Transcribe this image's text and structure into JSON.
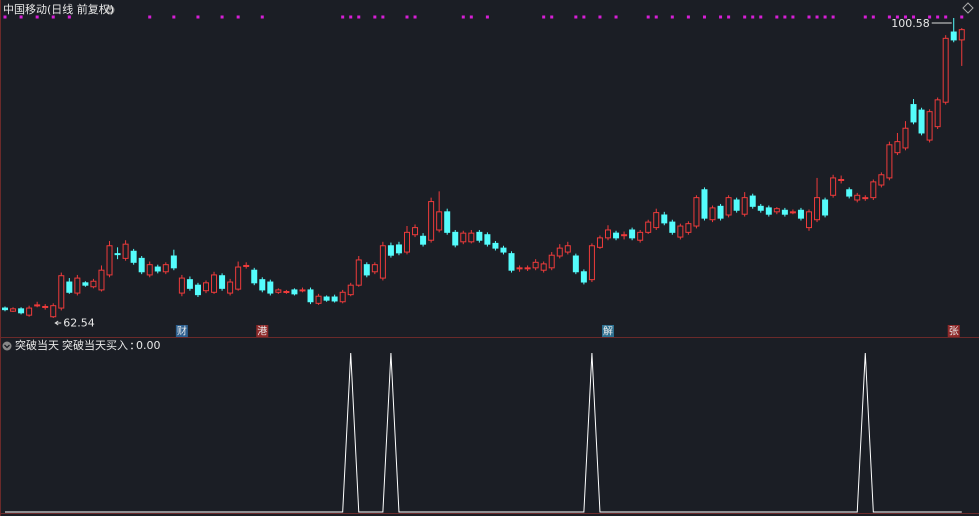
{
  "chart_data": [
    {
      "type": "candlestick",
      "title": "中国移动(日线 前复权)",
      "up_color": "#ee3b3b",
      "down_color": "#54fcfc",
      "signal_color": "#d61fd6",
      "ylim": [
        60.13,
        102.86
      ],
      "candles": [
        [
          63.8,
          64.0,
          63.4,
          63.6
        ],
        [
          63.4,
          63.9,
          63.3,
          63.7
        ],
        [
          63.7,
          63.9,
          63.0,
          63.2
        ],
        [
          62.9,
          64.1,
          62.7,
          63.8
        ],
        [
          64.2,
          64.6,
          63.9,
          64.2
        ],
        [
          63.9,
          64.3,
          63.6,
          64.0
        ],
        [
          62.7,
          64.4,
          62.54,
          64.1
        ],
        [
          63.8,
          68.3,
          63.5,
          67.9
        ],
        [
          67.1,
          67.6,
          65.6,
          65.8
        ],
        [
          65.7,
          68.0,
          65.4,
          67.6
        ],
        [
          67.0,
          67.2,
          66.5,
          66.7
        ],
        [
          66.5,
          67.5,
          66.3,
          67.2
        ],
        [
          66.1,
          69.2,
          65.9,
          68.6
        ],
        [
          68.0,
          72.3,
          67.7,
          71.7
        ],
        [
          70.7,
          71.5,
          70.0,
          70.6
        ],
        [
          70.1,
          72.4,
          69.8,
          71.9
        ],
        [
          71.0,
          71.3,
          69.3,
          69.6
        ],
        [
          70.1,
          70.4,
          68.1,
          68.4
        ],
        [
          68.0,
          69.7,
          67.7,
          69.3
        ],
        [
          69.0,
          69.3,
          68.2,
          68.5
        ],
        [
          68.4,
          69.6,
          68.1,
          69.3
        ],
        [
          70.4,
          71.2,
          68.6,
          68.9
        ],
        [
          65.7,
          68.0,
          65.3,
          67.6
        ],
        [
          67.4,
          67.8,
          66.0,
          66.3
        ],
        [
          66.7,
          67.0,
          65.2,
          65.5
        ],
        [
          66.0,
          67.3,
          65.7,
          67.0
        ],
        [
          65.8,
          68.4,
          65.6,
          68.0
        ],
        [
          67.9,
          68.2,
          66.0,
          66.3
        ],
        [
          65.7,
          67.5,
          65.4,
          67.1
        ],
        [
          66.2,
          69.7,
          66.0,
          69.0
        ],
        [
          69.1,
          69.6,
          68.8,
          69.2
        ],
        [
          68.6,
          68.9,
          66.7,
          67.0
        ],
        [
          67.4,
          67.7,
          65.8,
          66.1
        ],
        [
          67.1,
          67.4,
          65.4,
          65.7
        ],
        [
          65.8,
          66.3,
          65.6,
          66.1
        ],
        [
          65.8,
          66.1,
          65.6,
          65.9
        ],
        [
          66.1,
          66.3,
          65.4,
          65.6
        ],
        [
          66.0,
          66.4,
          65.8,
          66.1
        ],
        [
          66.1,
          66.4,
          64.3,
          64.6
        ],
        [
          64.4,
          65.6,
          64.2,
          65.3
        ],
        [
          65.2,
          65.4,
          64.6,
          64.8
        ],
        [
          65.2,
          65.5,
          64.5,
          64.7
        ],
        [
          64.6,
          66.1,
          64.4,
          65.8
        ],
        [
          65.5,
          67.0,
          65.3,
          66.7
        ],
        [
          66.7,
          70.4,
          66.5,
          69.9
        ],
        [
          69.3,
          69.6,
          67.7,
          68.0
        ],
        [
          68.4,
          69.6,
          68.1,
          69.3
        ],
        [
          67.6,
          72.2,
          67.3,
          71.7
        ],
        [
          71.7,
          72.1,
          70.2,
          70.5
        ],
        [
          71.8,
          72.2,
          70.5,
          70.8
        ],
        [
          70.9,
          74.2,
          70.6,
          73.4
        ],
        [
          73.1,
          74.4,
          72.8,
          74.0
        ],
        [
          72.9,
          73.3,
          71.6,
          71.9
        ],
        [
          72.4,
          77.8,
          72.1,
          77.3
        ],
        [
          73.7,
          78.6,
          73.4,
          76.0
        ],
        [
          76.0,
          76.4,
          73.1,
          73.4
        ],
        [
          73.4,
          73.7,
          71.5,
          71.8
        ],
        [
          72.2,
          73.6,
          71.9,
          73.3
        ],
        [
          72.2,
          73.7,
          72.0,
          73.3
        ],
        [
          73.4,
          73.7,
          72.1,
          72.4
        ],
        [
          73.1,
          73.4,
          71.6,
          71.9
        ],
        [
          72.0,
          72.3,
          71.1,
          71.4
        ],
        [
          71.4,
          71.7,
          70.6,
          70.9
        ],
        [
          70.7,
          71.0,
          68.3,
          68.6
        ],
        [
          68.9,
          69.2,
          68.4,
          68.9
        ],
        [
          68.8,
          69.2,
          68.5,
          68.9
        ],
        [
          68.9,
          70.0,
          68.6,
          69.6
        ],
        [
          68.6,
          69.7,
          68.3,
          69.4
        ],
        [
          68.9,
          70.9,
          68.6,
          70.5
        ],
        [
          70.4,
          71.9,
          70.1,
          71.4
        ],
        [
          70.9,
          72.2,
          70.6,
          71.7
        ],
        [
          70.4,
          70.7,
          68.1,
          68.4
        ],
        [
          68.4,
          68.7,
          66.8,
          67.1
        ],
        [
          67.4,
          72.0,
          67.1,
          71.7
        ],
        [
          71.5,
          73.0,
          71.3,
          72.7
        ],
        [
          72.7,
          74.3,
          72.4,
          73.7
        ],
        [
          73.3,
          73.6,
          72.4,
          72.7
        ],
        [
          73.0,
          73.5,
          72.5,
          73.1
        ],
        [
          73.7,
          74.0,
          72.4,
          72.7
        ],
        [
          72.4,
          73.7,
          72.1,
          73.4
        ],
        [
          73.4,
          75.0,
          73.2,
          74.7
        ],
        [
          74.0,
          76.4,
          73.7,
          75.9
        ],
        [
          75.6,
          76.0,
          74.3,
          74.6
        ],
        [
          74.7,
          75.0,
          73.1,
          73.4
        ],
        [
          72.8,
          74.5,
          72.5,
          74.2
        ],
        [
          73.4,
          74.8,
          73.1,
          74.5
        ],
        [
          74.2,
          78.1,
          73.9,
          77.8
        ],
        [
          78.8,
          79.1,
          74.9,
          75.2
        ],
        [
          75.0,
          76.8,
          74.7,
          76.5
        ],
        [
          76.7,
          77.0,
          74.9,
          75.2
        ],
        [
          75.6,
          78.1,
          75.3,
          77.8
        ],
        [
          77.5,
          77.8,
          75.9,
          76.2
        ],
        [
          75.7,
          78.5,
          75.4,
          77.8
        ],
        [
          78.0,
          78.3,
          76.4,
          76.7
        ],
        [
          76.7,
          77.0,
          75.9,
          76.2
        ],
        [
          76.5,
          76.8,
          75.4,
          75.7
        ],
        [
          76.0,
          76.6,
          75.7,
          76.4
        ],
        [
          76.2,
          76.5,
          75.4,
          75.7
        ],
        [
          76.0,
          76.3,
          75.7,
          76.0
        ],
        [
          76.2,
          76.5,
          74.9,
          75.2
        ],
        [
          74.0,
          76.3,
          73.6,
          76.0
        ],
        [
          75.0,
          80.3,
          74.7,
          77.8
        ],
        [
          77.5,
          77.8,
          75.3,
          75.6
        ],
        [
          78.1,
          80.7,
          77.8,
          80.3
        ],
        [
          80.0,
          80.6,
          79.6,
          80.1
        ],
        [
          78.8,
          79.1,
          77.7,
          78.0
        ],
        [
          77.5,
          78.4,
          77.2,
          78.1
        ],
        [
          77.7,
          78.1,
          77.4,
          77.8
        ],
        [
          77.8,
          80.1,
          77.5,
          79.8
        ],
        [
          79.4,
          81.0,
          79.1,
          80.7
        ],
        [
          80.3,
          84.9,
          80.0,
          84.5
        ],
        [
          83.5,
          86.0,
          83.2,
          84.9
        ],
        [
          84.1,
          87.5,
          83.8,
          86.6
        ],
        [
          89.6,
          90.3,
          87.1,
          87.4
        ],
        [
          88.9,
          89.2,
          85.7,
          86.0
        ],
        [
          85.1,
          89.0,
          84.8,
          88.7
        ],
        [
          86.8,
          90.5,
          86.5,
          90.2
        ],
        [
          89.9,
          98.4,
          89.6,
          98.0
        ],
        [
          98.8,
          100.58,
          97.5,
          97.8
        ],
        [
          97.8,
          99.3,
          94.5,
          99.1
        ]
      ],
      "signal": [
        1,
        null,
        1,
        null,
        1,
        null,
        1,
        null,
        1,
        null,
        null,
        null,
        null,
        null,
        null,
        null,
        null,
        null,
        1,
        null,
        null,
        1,
        null,
        null,
        1,
        null,
        null,
        1,
        null,
        1,
        null,
        null,
        1,
        null,
        null,
        null,
        null,
        null,
        null,
        null,
        null,
        null,
        1,
        1,
        1,
        null,
        1,
        1,
        null,
        null,
        1,
        1,
        null,
        null,
        null,
        null,
        null,
        1,
        1,
        null,
        1,
        null,
        null,
        null,
        null,
        null,
        null,
        1,
        1,
        null,
        null,
        1,
        1,
        null,
        1,
        null,
        1,
        null,
        null,
        null,
        1,
        1,
        null,
        1,
        null,
        1,
        null,
        1,
        null,
        1,
        1,
        null,
        1,
        1,
        1,
        null,
        1,
        1,
        1,
        null,
        1,
        1,
        1,
        1,
        null,
        null,
        null,
        1,
        1,
        null,
        1,
        1,
        1,
        1,
        null,
        1,
        1,
        1,
        null,
        1
      ],
      "events": [
        null,
        null,
        null,
        null,
        null,
        null,
        null,
        null,
        null,
        null,
        null,
        null,
        null,
        null,
        null,
        null,
        null,
        null,
        null,
        null,
        null,
        null,
        {
          "label": "财",
          "color": "#2c5f8f"
        },
        null,
        null,
        null,
        null,
        null,
        null,
        null,
        null,
        null,
        {
          "label": "港",
          "color": "#8f2a2a"
        },
        null,
        null,
        null,
        null,
        null,
        null,
        null,
        null,
        null,
        null,
        null,
        null,
        null,
        null,
        null,
        null,
        null,
        null,
        null,
        null,
        null,
        null,
        null,
        null,
        null,
        null,
        null,
        null,
        null,
        null,
        null,
        null,
        null,
        null,
        null,
        null,
        null,
        null,
        null,
        null,
        null,
        null,
        {
          "label": "解",
          "color": "#2c6f8f"
        },
        null,
        null,
        null,
        null,
        null,
        null,
        null,
        null,
        null,
        null,
        null,
        null,
        null,
        null,
        null,
        null,
        null,
        null,
        null,
        null,
        null,
        null,
        null,
        null,
        null,
        null,
        null,
        null,
        null,
        null,
        null,
        null,
        null,
        null,
        null,
        null,
        null,
        null,
        null,
        null,
        null,
        null,
        {
          "label": "张",
          "color": "#8f2a2a"
        },
        null,
        null
      ]
    },
    {
      "type": "line",
      "title": "突破当天",
      "ylim": [
        0,
        1.08
      ],
      "series": [
        {
          "name": "突破当天买入",
          "color": "#ffffff",
          "values": [
            0,
            0,
            0,
            0,
            0,
            0,
            0,
            0,
            0,
            0,
            0,
            0,
            0,
            0,
            0,
            0,
            0,
            0,
            0,
            0,
            0,
            0,
            0,
            0,
            0,
            0,
            0,
            0,
            0,
            0,
            0,
            0,
            0,
            0,
            0,
            0,
            0,
            0,
            0,
            0,
            0,
            0,
            0,
            1,
            0,
            0,
            0,
            0,
            1,
            0,
            0,
            0,
            0,
            0,
            0,
            0,
            0,
            0,
            0,
            0,
            0,
            0,
            0,
            0,
            0,
            0,
            0,
            0,
            0,
            0,
            0,
            0,
            0,
            1,
            0,
            0,
            0,
            0,
            0,
            0,
            0,
            0,
            0,
            0,
            0,
            0,
            0,
            0,
            0,
            0,
            0,
            0,
            0,
            0,
            0,
            0,
            0,
            0,
            0,
            0,
            0,
            0,
            0,
            0,
            0,
            0,
            0,
            1,
            0,
            0,
            0,
            0,
            0,
            0,
            0,
            0,
            0,
            0,
            0,
            0
          ],
          "value_labels": [
            null,
            null,
            null,
            null,
            null,
            null,
            null,
            null,
            null,
            null,
            null,
            null,
            null,
            null,
            null,
            null,
            null,
            null,
            null,
            null,
            null,
            null,
            null,
            null,
            null,
            null,
            null,
            null,
            null,
            null,
            null,
            null,
            null,
            null,
            null,
            null,
            null,
            null,
            null,
            null,
            null,
            null,
            null,
            null,
            null,
            null,
            null,
            null,
            null,
            null,
            null,
            null,
            null,
            null,
            null,
            null,
            null,
            null,
            null,
            null,
            null,
            null,
            null,
            null,
            null,
            null,
            null,
            null,
            null,
            null,
            null,
            null,
            null,
            null,
            null,
            null,
            null,
            null,
            null,
            null,
            null,
            null,
            null,
            null,
            null,
            null,
            null,
            null,
            null,
            null,
            null,
            null,
            null,
            null,
            null,
            null,
            null,
            null,
            null,
            null,
            null,
            null,
            null,
            null,
            null,
            null,
            null,
            null,
            null,
            null,
            null,
            null,
            null,
            null,
            null,
            null,
            null,
            null,
            null,
            "0.00"
          ]
        }
      ]
    }
  ]
}
